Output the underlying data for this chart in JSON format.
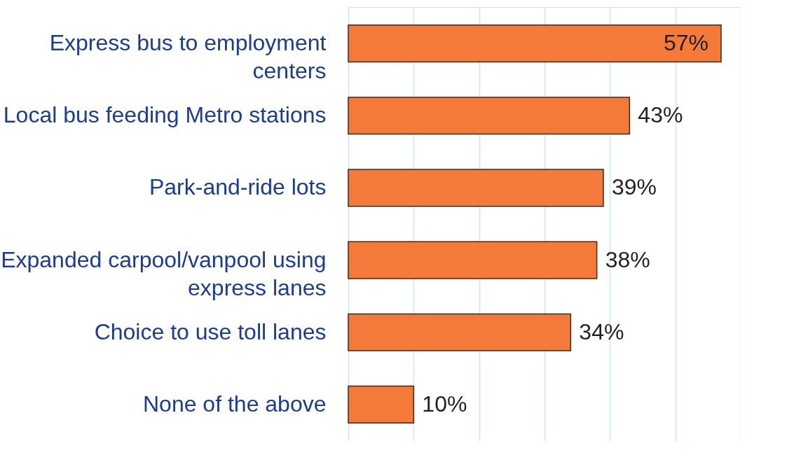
{
  "chart_data": {
    "type": "bar",
    "orientation": "horizontal",
    "categories": [
      "Express bus to employment centers",
      "Local bus feeding Metro stations",
      "Park-and-ride lots",
      "Expanded carpool/vanpool using express lanes",
      "Choice to use toll lanes",
      "None of the above"
    ],
    "values": [
      57,
      43,
      39,
      38,
      34,
      10
    ],
    "value_labels": [
      "57%",
      "43%",
      "39%",
      "38%",
      "34%",
      "10%"
    ],
    "color": "#f47a3a",
    "xlim": [
      0,
      60
    ],
    "xticks": [
      {
        "value": 0,
        "label": null
      },
      {
        "value": 10,
        "label": null
      },
      {
        "value": 20,
        "label": null
      },
      {
        "value": 30,
        "label": null
      },
      {
        "value": 40,
        "label": null
      },
      {
        "value": 50,
        "label": null
      },
      {
        "value": 60,
        "label": null
      }
    ],
    "tick_labels": "y",
    "grid": "x"
  }
}
